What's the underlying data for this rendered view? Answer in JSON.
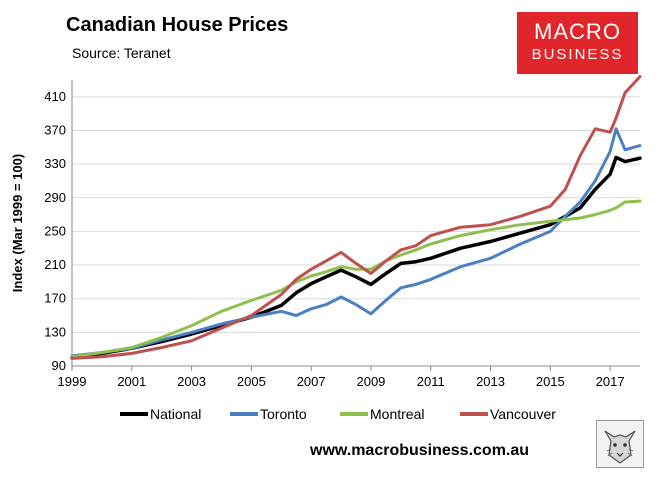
{
  "header": {
    "title": "Canadian House Prices",
    "subtitle": "Source: Teranet"
  },
  "logo": {
    "line1": "MACRO",
    "line2": "BUSINESS",
    "color": "#e0262a"
  },
  "footer": {
    "url": "www.macrobusiness.com.au"
  },
  "badge_icon": "wolf-icon",
  "chart_data": {
    "type": "line",
    "title": "Canadian House Prices",
    "ylabel": "Index (Mar 1999 = 100)",
    "xlabel": "",
    "xlim": [
      1999,
      2018
    ],
    "ylim": [
      90,
      430
    ],
    "yticks": [
      90,
      130,
      170,
      210,
      250,
      290,
      330,
      370,
      410
    ],
    "xticks": [
      1999,
      2001,
      2003,
      2005,
      2007,
      2009,
      2011,
      2013,
      2015,
      2017
    ],
    "grid": true,
    "legend": "bottom",
    "series": [
      {
        "name": "National",
        "color": "#000000",
        "points": [
          [
            1999,
            100
          ],
          [
            2000,
            105
          ],
          [
            2001,
            111
          ],
          [
            2002,
            119
          ],
          [
            2003,
            128
          ],
          [
            2004,
            138
          ],
          [
            2005,
            148
          ],
          [
            2006,
            162
          ],
          [
            2006.5,
            177
          ],
          [
            2007,
            188
          ],
          [
            2007.5,
            196
          ],
          [
            2008,
            204
          ],
          [
            2008.5,
            196
          ],
          [
            2009,
            187
          ],
          [
            2009.5,
            200
          ],
          [
            2010,
            212
          ],
          [
            2010.5,
            214
          ],
          [
            2011,
            218
          ],
          [
            2012,
            230
          ],
          [
            2013,
            238
          ],
          [
            2014,
            248
          ],
          [
            2015,
            258
          ],
          [
            2015.5,
            268
          ],
          [
            2016,
            278
          ],
          [
            2016.5,
            300
          ],
          [
            2017,
            318
          ],
          [
            2017.2,
            338
          ],
          [
            2017.5,
            333
          ],
          [
            2018,
            337
          ]
        ]
      },
      {
        "name": "Toronto",
        "color": "#4a7fc1",
        "points": [
          [
            1999,
            102
          ],
          [
            2000,
            106
          ],
          [
            2001,
            111
          ],
          [
            2002,
            121
          ],
          [
            2003,
            130
          ],
          [
            2004,
            140
          ],
          [
            2005,
            148
          ],
          [
            2006,
            155
          ],
          [
            2006.5,
            150
          ],
          [
            2007,
            158
          ],
          [
            2007.5,
            163
          ],
          [
            2008,
            172
          ],
          [
            2008.5,
            163
          ],
          [
            2009,
            152
          ],
          [
            2009.5,
            168
          ],
          [
            2010,
            183
          ],
          [
            2010.5,
            187
          ],
          [
            2011,
            193
          ],
          [
            2012,
            208
          ],
          [
            2013,
            218
          ],
          [
            2014,
            235
          ],
          [
            2015,
            250
          ],
          [
            2015.5,
            268
          ],
          [
            2016,
            285
          ],
          [
            2016.5,
            310
          ],
          [
            2017,
            345
          ],
          [
            2017.2,
            372
          ],
          [
            2017.5,
            347
          ],
          [
            2018,
            352
          ]
        ]
      },
      {
        "name": "Montreal",
        "color": "#8fc04f",
        "points": [
          [
            1999,
            101
          ],
          [
            2000,
            106
          ],
          [
            2001,
            112
          ],
          [
            2002,
            124
          ],
          [
            2003,
            138
          ],
          [
            2004,
            155
          ],
          [
            2005,
            168
          ],
          [
            2006,
            180
          ],
          [
            2006.5,
            190
          ],
          [
            2007,
            197
          ],
          [
            2007.5,
            202
          ],
          [
            2008,
            208
          ],
          [
            2008.5,
            205
          ],
          [
            2009,
            205
          ],
          [
            2009.5,
            215
          ],
          [
            2010,
            222
          ],
          [
            2010.5,
            228
          ],
          [
            2011,
            235
          ],
          [
            2012,
            245
          ],
          [
            2013,
            252
          ],
          [
            2014,
            258
          ],
          [
            2015,
            262
          ],
          [
            2015.5,
            264
          ],
          [
            2016,
            266
          ],
          [
            2016.5,
            270
          ],
          [
            2017,
            275
          ],
          [
            2017.2,
            278
          ],
          [
            2017.5,
            285
          ],
          [
            2018,
            286
          ]
        ]
      },
      {
        "name": "Vancouver",
        "color": "#c0504d",
        "points": [
          [
            1999,
            99
          ],
          [
            2000,
            101
          ],
          [
            2001,
            105
          ],
          [
            2002,
            112
          ],
          [
            2003,
            120
          ],
          [
            2004,
            135
          ],
          [
            2005,
            150
          ],
          [
            2006,
            175
          ],
          [
            2006.5,
            193
          ],
          [
            2007,
            205
          ],
          [
            2007.5,
            215
          ],
          [
            2008,
            225
          ],
          [
            2008.5,
            212
          ],
          [
            2009,
            200
          ],
          [
            2009.5,
            215
          ],
          [
            2010,
            228
          ],
          [
            2010.5,
            233
          ],
          [
            2011,
            245
          ],
          [
            2012,
            255
          ],
          [
            2013,
            258
          ],
          [
            2014,
            268
          ],
          [
            2015,
            280
          ],
          [
            2015.5,
            300
          ],
          [
            2016,
            340
          ],
          [
            2016.5,
            372
          ],
          [
            2017,
            368
          ],
          [
            2017.2,
            385
          ],
          [
            2017.5,
            415
          ],
          [
            2018,
            434
          ]
        ]
      }
    ]
  }
}
